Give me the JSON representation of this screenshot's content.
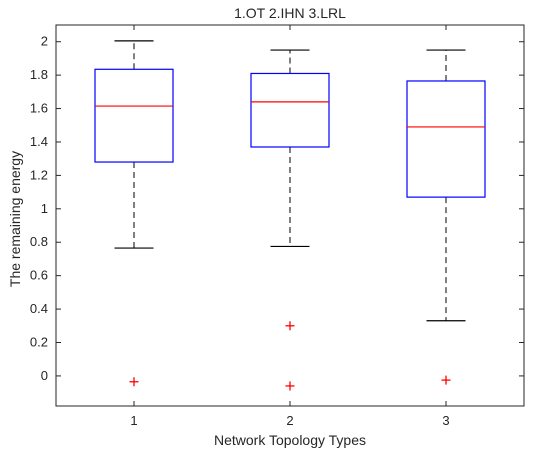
{
  "chart_data": {
    "type": "boxplot",
    "title": "1.OT 2.IHN 3.LRL",
    "xlabel": "Network Topology Types",
    "ylabel": "The remaining energy",
    "categories": [
      "1",
      "2",
      "3"
    ],
    "xlim": [
      0.5,
      3.5
    ],
    "ylim": [
      -0.18,
      2.1
    ],
    "yticks": [
      0,
      0.2,
      0.4,
      0.6,
      0.8,
      1,
      1.2,
      1.4,
      1.6,
      1.8,
      2
    ],
    "ytick_labels": [
      "0",
      "0.2",
      "0.4",
      "0.6",
      "0.8",
      "1",
      "1.2",
      "1.4",
      "1.6",
      "1.8",
      "2"
    ],
    "grid": false,
    "boxes": [
      {
        "category": "1",
        "whisker_low": 0.765,
        "q1": 1.28,
        "median": 1.615,
        "q3": 1.835,
        "whisker_high": 2.005,
        "outliers": [
          -0.035
        ]
      },
      {
        "category": "2",
        "whisker_low": 0.775,
        "q1": 1.37,
        "median": 1.64,
        "q3": 1.81,
        "whisker_high": 1.95,
        "outliers": [
          0.3,
          -0.06
        ]
      },
      {
        "category": "3",
        "whisker_low": 0.33,
        "q1": 1.07,
        "median": 1.49,
        "q3": 1.765,
        "whisker_high": 1.95,
        "outliers": [
          -0.025
        ]
      }
    ],
    "colors": {
      "box": "#0000ff",
      "median": "#ff0000",
      "whisker": "#000000",
      "outlier": "#ff0000",
      "axis": "#262626"
    }
  }
}
